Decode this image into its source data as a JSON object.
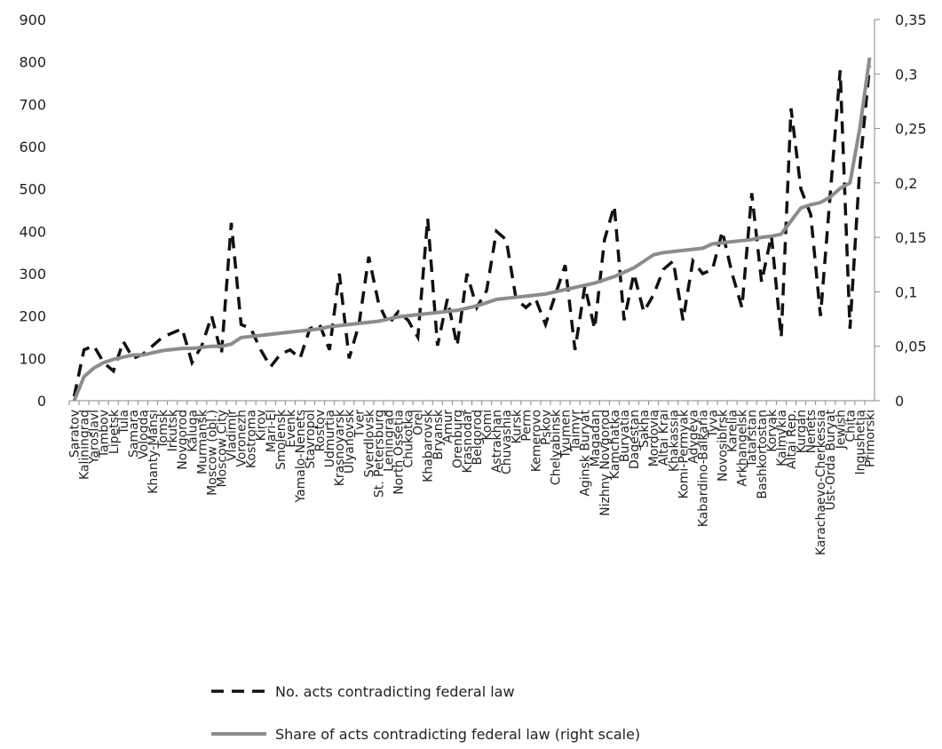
{
  "chart_data": {
    "type": "line",
    "categories": [
      "Saratov",
      "Kaliningrad",
      "Yaroslavl",
      "Tambov",
      "Lipetsk",
      "Tula",
      "Samara",
      "Vologda",
      "Khanty-Mansi",
      "Tomsk",
      "Irkutsk",
      "Novgorod",
      "Kaluga",
      "Murmansk",
      "Moscow (obl.)",
      "Moscow City",
      "Vladimir",
      "Voronezh",
      "Kostroma",
      "Kirov",
      "Mari-El",
      "Smolensk",
      "Evenk",
      "Yamalo-Nenets",
      "Stavropol",
      "Rostov",
      "Udmurtia",
      "Krasnoyarsk",
      "Ulyanovsk",
      "Tver",
      "Sverdlovsk",
      "St. Petersburg",
      "Leningrad",
      "North Ossetia",
      "Chukotka",
      "Orel",
      "Khabarovsk",
      "Bryansk",
      "Amur",
      "Orenburg",
      "Krasnodar",
      "Belgorod",
      "Komi",
      "Astrakhan",
      "Chuvashia",
      "Kursk",
      "Perm",
      "Kemerovo",
      "Pskov",
      "Chelyabinsk",
      "Tyumen",
      "Taimyr",
      "Aginsk Buryat",
      "Magadan",
      "Nizhny Novgorod",
      "Kamchatka",
      "Buryatia",
      "Dagestan",
      "Sakha",
      "Mordovia",
      "Altai Krai",
      "Khakassia",
      "Komi-Permyak",
      "Adygeya",
      "Kabardino-Balkaria",
      "Tyva",
      "Novosibirsk",
      "Karelia",
      "Arkhangelsk",
      "Tatarstan",
      "Bashkortostan",
      "Koryak",
      "Kalmykia",
      "Altai Rep.",
      "Kurgan",
      "Nenets",
      "Karachaevo-Cherkessia",
      "Ust-Orda Buryat",
      "Jewish",
      "Chita",
      "Ingushetia",
      "Primorski"
    ],
    "series": [
      {
        "name": "No. acts contradicting federal law",
        "color": "#111111",
        "dash": true,
        "values": [
          10,
          120,
          130,
          90,
          70,
          140,
          100,
          110,
          130,
          150,
          160,
          170,
          90,
          130,
          200,
          110,
          420,
          180,
          170,
          120,
          80,
          110,
          120,
          100,
          170,
          180,
          120,
          300,
          100,
          180,
          340,
          230,
          180,
          210,
          190,
          150,
          430,
          130,
          240,
          130,
          300,
          220,
          260,
          400,
          380,
          240,
          220,
          240,
          180,
          250,
          320,
          120,
          270,
          170,
          380,
          460,
          190,
          300,
          210,
          250,
          310,
          330,
          190,
          330,
          300,
          310,
          400,
          300,
          220,
          490,
          280,
          390,
          150,
          690,
          500,
          440,
          200,
          490,
          780,
          170,
          550,
          790
        ]
      },
      {
        "name": "Share of acts contradicting federal law (right scale)",
        "color": "#8c8c8c",
        "axis": "y2",
        "values": [
          0,
          0.022,
          0.03,
          0.035,
          0.038,
          0.04,
          0.042,
          0.042,
          0.044,
          0.046,
          0.047,
          0.048,
          0.048,
          0.049,
          0.05,
          0.05,
          0.052,
          0.058,
          0.059,
          0.06,
          0.061,
          0.062,
          0.063,
          0.064,
          0.065,
          0.066,
          0.068,
          0.069,
          0.07,
          0.071,
          0.072,
          0.073,
          0.075,
          0.077,
          0.078,
          0.079,
          0.08,
          0.081,
          0.082,
          0.083,
          0.085,
          0.087,
          0.09,
          0.093,
          0.094,
          0.095,
          0.096,
          0.097,
          0.098,
          0.1,
          0.102,
          0.104,
          0.106,
          0.108,
          0.111,
          0.114,
          0.118,
          0.122,
          0.128,
          0.134,
          0.136,
          0.137,
          0.138,
          0.139,
          0.14,
          0.144,
          0.145,
          0.146,
          0.147,
          0.148,
          0.15,
          0.151,
          0.153,
          0.165,
          0.177,
          0.18,
          0.182,
          0.187,
          0.195,
          0.2,
          0.25,
          0.315
        ]
      }
    ],
    "ylim": [
      0,
      900
    ],
    "yticks": [
      0,
      100,
      200,
      300,
      400,
      500,
      600,
      700,
      800,
      900
    ],
    "y2lim": [
      0,
      0.35
    ],
    "y2ticks": [
      0,
      {
        "value": 0.05,
        "label": "0,05"
      },
      {
        "value": 0.1,
        "label": "0,1"
      },
      {
        "value": 0.15,
        "label": "0,15"
      },
      {
        "value": 0.2,
        "label": "0,2"
      },
      {
        "value": 0.25,
        "label": "0,25"
      },
      {
        "value": 0.3,
        "label": "0,3"
      },
      {
        "value": 0.35,
        "label": "0,35"
      }
    ],
    "legend": "bottom"
  }
}
